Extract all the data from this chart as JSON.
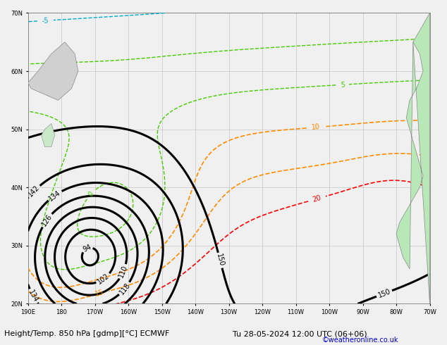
{
  "title_left": "Height/Temp. 850 hPa [gdmp][°C] ECMWF",
  "title_right": "Tu 28-05-2024 12:00 UTC (06+06)",
  "credit": "©weatheronline.co.uk",
  "bg_color": "#f0f0f0",
  "ocean_color": "#f0f0f0",
  "land_color": "#b8e8b8",
  "land_edge": "#888888",
  "grid_color": "#999999",
  "geo_color": "#000000",
  "geo_lw": 2.2,
  "temp_red_color": "#ff0000",
  "temp_orange_color": "#ff8c00",
  "temp_green_color": "#44cc00",
  "temp_cyan_color": "#00aacc",
  "temp_blue_color": "#0044ff",
  "temp_purple_color": "#aa00cc",
  "xlim": [
    -190,
    -70
  ],
  "ylim": [
    20,
    70
  ],
  "x_ticks": [
    -190,
    -180,
    -170,
    -160,
    -150,
    -140,
    -130,
    -120,
    -110,
    -100,
    -90,
    -80,
    -70
  ],
  "x_tick_labels": [
    "190E",
    "180",
    "170W",
    "160W",
    "150W",
    "140W",
    "130W",
    "120W",
    "110W",
    "100W",
    "90W",
    "80W",
    "70W"
  ],
  "y_ticks": [
    20,
    30,
    40,
    50,
    60,
    70
  ],
  "y_tick_labels": [
    "20N",
    "30N",
    "40N",
    "50N",
    "60N",
    "70N"
  ],
  "title_fontsize": 8,
  "credit_fontsize": 7
}
